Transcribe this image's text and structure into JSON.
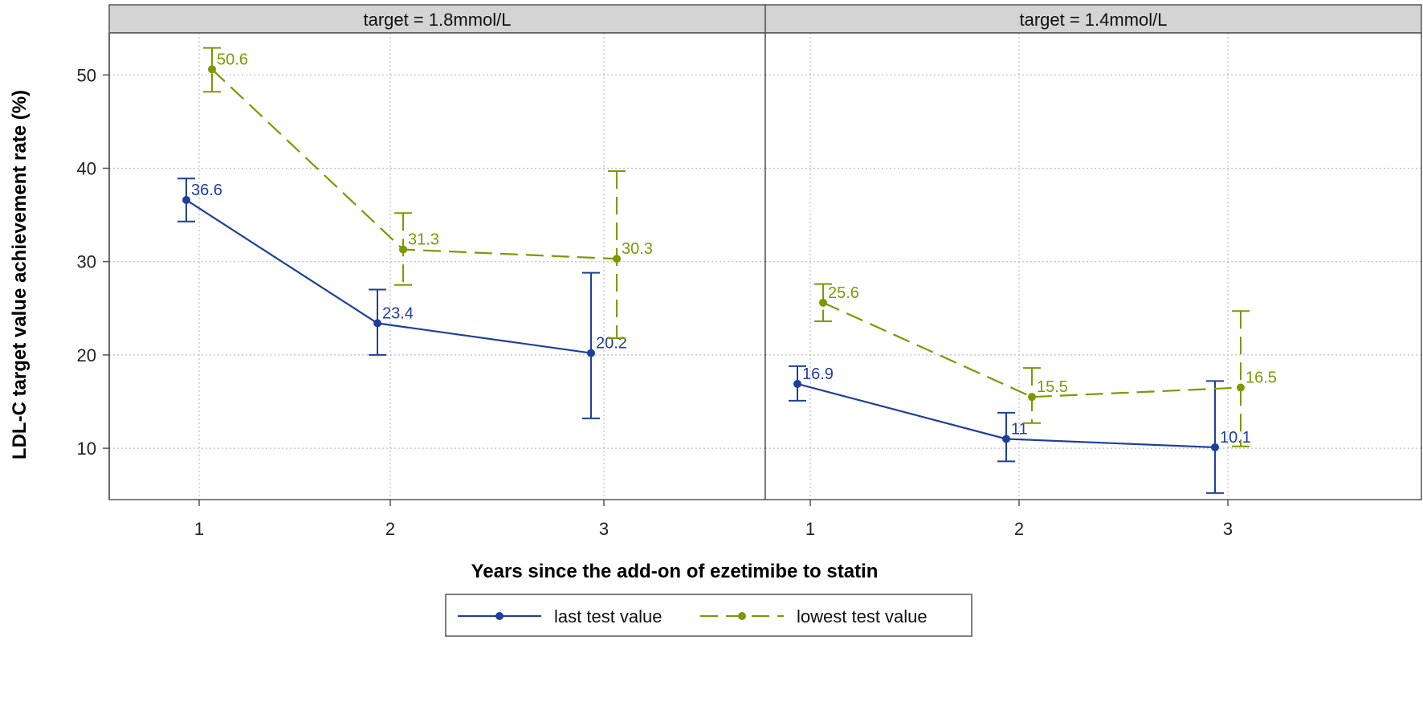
{
  "chart_data": {
    "type": "line",
    "ylabel": "LDL-C target value achievement rate (%)",
    "xlabel": "Years since the add-on of ezetimibe to statin",
    "ylim": [
      4.5,
      54.5
    ],
    "yticks": [
      10,
      20,
      30,
      40,
      50
    ],
    "grid": true,
    "legend_position": "bottom-center",
    "colors": {
      "last": "#1f3f9c",
      "lowest": "#7a9a01"
    },
    "panels": [
      {
        "title": "target = 1.8mmol/L",
        "categories": [
          "1",
          "2",
          "3"
        ],
        "series": [
          {
            "name": "last test value",
            "values": [
              36.6,
              23.4,
              20.2
            ],
            "lower": [
              34.3,
              20.0,
              13.2
            ],
            "upper": [
              38.9,
              27.0,
              28.8
            ],
            "labels": [
              "36.6",
              "23.4",
              "20.2"
            ]
          },
          {
            "name": "lowest test value",
            "values": [
              50.6,
              31.3,
              30.3
            ],
            "lower": [
              48.2,
              27.5,
              21.8
            ],
            "upper": [
              52.9,
              35.2,
              39.7
            ],
            "labels": [
              "50.6",
              "31.3",
              "30.3"
            ]
          }
        ]
      },
      {
        "title": "target = 1.4mmol/L",
        "categories": [
          "1",
          "2",
          "3"
        ],
        "series": [
          {
            "name": "last test value",
            "values": [
              16.9,
              11.0,
              10.1
            ],
            "lower": [
              15.1,
              8.6,
              5.2
            ],
            "upper": [
              18.8,
              13.8,
              17.2
            ],
            "labels": [
              "16.9",
              "11",
              "10.1"
            ]
          },
          {
            "name": "lowest test value",
            "values": [
              25.6,
              15.5,
              16.5
            ],
            "lower": [
              23.6,
              12.7,
              10.2
            ],
            "upper": [
              27.6,
              18.6,
              24.7
            ],
            "labels": [
              "25.6",
              "15.5",
              "16.5"
            ]
          }
        ]
      }
    ]
  },
  "legend": {
    "items": [
      {
        "key": "last",
        "label": "last test value"
      },
      {
        "key": "lowest",
        "label": "lowest test value"
      }
    ]
  }
}
